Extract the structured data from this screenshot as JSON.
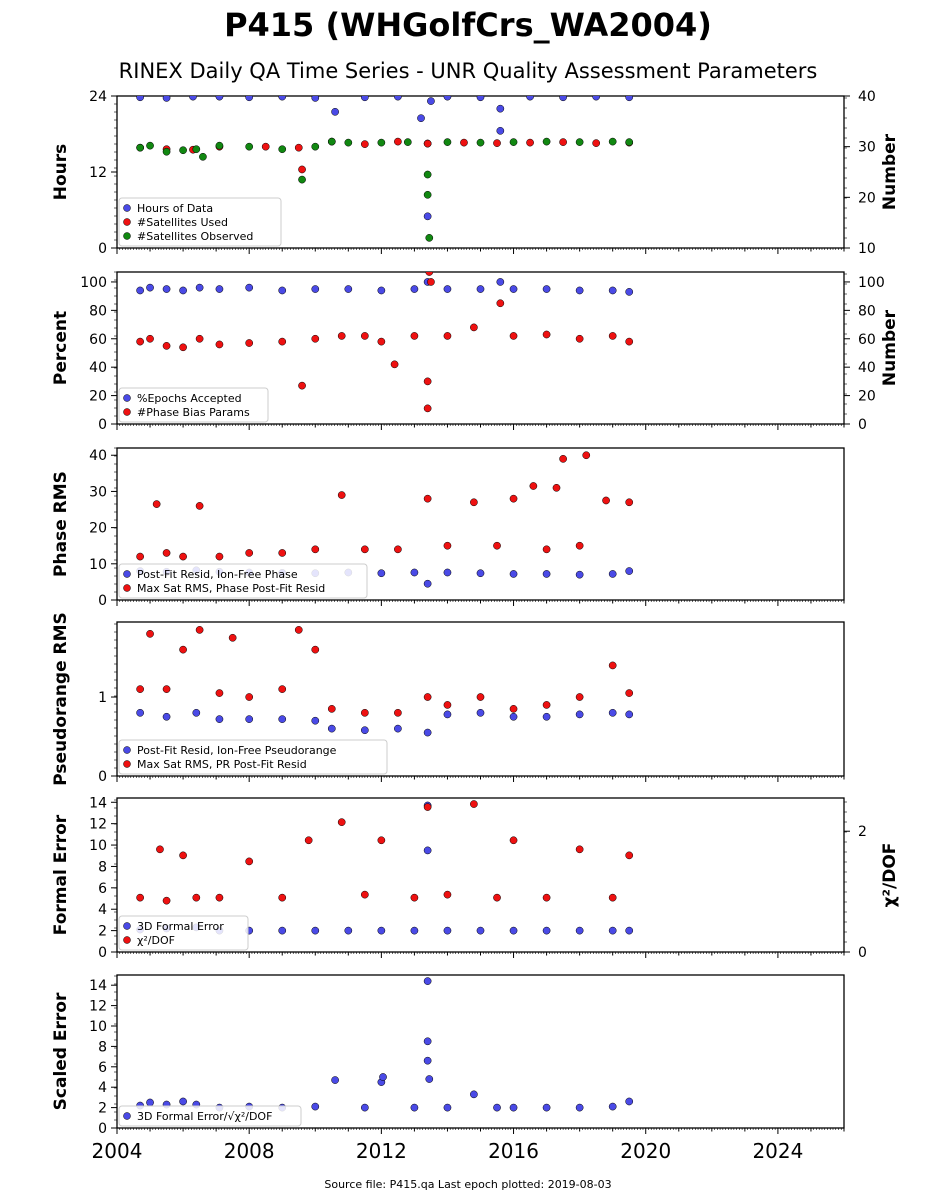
{
  "figure": {
    "title": "P415 (WHGolfCrs_WA2004)",
    "subtitle": "RINEX Daily QA Time Series - UNR Quality Assessment Parameters",
    "footer": "Source file: P415.qa Last epoch plotted: 2019-08-03",
    "x_ticks": [
      "2004",
      "2008",
      "2012",
      "2016",
      "2020",
      "2024"
    ],
    "colors": {
      "blue": "#4a4ae6",
      "red": "#ee1111",
      "green": "#118811",
      "edge": "#000000"
    }
  },
  "chart_data": [
    {
      "type": "scatter",
      "id": "hours",
      "xlim": [
        2004,
        2026
      ],
      "ylabel": "Hours",
      "ylim": [
        0,
        24
      ],
      "yticks": [
        "0",
        "12",
        "24"
      ],
      "right_ylabel": "Number",
      "right_ylim": [
        10,
        40
      ],
      "right_yticks": [
        "10",
        "20",
        "30",
        "40"
      ],
      "legend_position": "lower-left",
      "series": [
        {
          "name": "Hours of Data",
          "color": "blue",
          "axis": "left",
          "x": [
            2004.7,
            2005.5,
            2006.3,
            2007.1,
            2008.0,
            2009.0,
            2010.0,
            2010.6,
            2011.5,
            2012.5,
            2013.2,
            2013.4,
            2013.4,
            2013.5,
            2014.0,
            2015.0,
            2015.6,
            2015.6,
            2016.5,
            2017.5,
            2018.5,
            2019.5
          ],
          "y": [
            23.8,
            23.7,
            23.9,
            23.9,
            23.8,
            23.9,
            23.7,
            21.5,
            23.8,
            23.9,
            20.5,
            16.5,
            5,
            23.2,
            23.9,
            23.8,
            18.5,
            22.0,
            23.9,
            23.8,
            23.9,
            23.8
          ]
        },
        {
          "name": "#Satellites Used",
          "color": "red",
          "axis": "right",
          "x": [
            2004.7,
            2005.5,
            2006.3,
            2007.1,
            2008.5,
            2009.5,
            2009.6,
            2010.5,
            2011.5,
            2012.5,
            2013.4,
            2014.5,
            2015.5,
            2016.5,
            2017.5,
            2018.5,
            2019.5
          ],
          "y": [
            29.8,
            29.5,
            29.4,
            30.0,
            30.0,
            29.8,
            25.5,
            31.0,
            30.5,
            31.0,
            30.6,
            30.8,
            30.7,
            30.8,
            30.9,
            30.7,
            30.8
          ]
        },
        {
          "name": "#Satellites Observed",
          "color": "green",
          "axis": "right",
          "x": [
            2004.7,
            2005.0,
            2005.5,
            2006.0,
            2006.4,
            2006.6,
            2007.1,
            2008.0,
            2009.0,
            2009.6,
            2010.0,
            2010.5,
            2011.0,
            2012.0,
            2012.8,
            2013.4,
            2013.45,
            2013.4,
            2014.0,
            2015.0,
            2016.0,
            2017.0,
            2018.0,
            2019.0,
            2019.5
          ],
          "y": [
            29.8,
            30.2,
            29.0,
            29.3,
            29.5,
            28.0,
            30.2,
            30.0,
            29.5,
            23.5,
            30.0,
            31.0,
            30.8,
            30.8,
            30.9,
            20.5,
            12.0,
            24.5,
            30.9,
            30.8,
            30.9,
            31.0,
            30.9,
            31.0,
            30.9
          ]
        }
      ]
    },
    {
      "type": "scatter",
      "id": "percent",
      "xlim": [
        2004,
        2026
      ],
      "ylabel": "Percent",
      "ylim": [
        0,
        107
      ],
      "yticks": [
        "0",
        "20",
        "40",
        "60",
        "80",
        "100"
      ],
      "right_ylabel": "Number",
      "right_ylim": [
        0,
        107
      ],
      "right_yticks": [
        "0",
        "20",
        "40",
        "60",
        "80",
        "100"
      ],
      "legend_position": "lower-left",
      "series": [
        {
          "name": "%Epochs Accepted",
          "color": "blue",
          "axis": "left",
          "x": [
            2004.7,
            2005.0,
            2005.5,
            2006.0,
            2006.5,
            2007.1,
            2008.0,
            2009.0,
            2010.0,
            2011.0,
            2012.0,
            2013.0,
            2013.4,
            2014.0,
            2015.0,
            2015.6,
            2016.0,
            2017.0,
            2018.0,
            2019.0,
            2019.5
          ],
          "y": [
            94,
            96,
            95,
            94,
            96,
            95,
            96,
            94,
            95,
            95,
            94,
            95,
            100,
            95,
            95,
            100,
            95,
            95,
            94,
            94,
            93
          ]
        },
        {
          "name": "#Phase Bias Params",
          "color": "red",
          "axis": "left",
          "x": [
            2004.7,
            2005.0,
            2005.5,
            2006.0,
            2006.5,
            2007.1,
            2008.0,
            2009.0,
            2009.6,
            2010.0,
            2010.8,
            2011.5,
            2012.0,
            2012.4,
            2013.0,
            2013.4,
            2013.4,
            2013.45,
            2013.5,
            2014.0,
            2014.8,
            2015.6,
            2016.0,
            2017.0,
            2018.0,
            2019.0,
            2019.5
          ],
          "y": [
            58,
            60,
            55,
            54,
            60,
            56,
            57,
            58,
            27,
            60,
            62,
            62,
            58,
            42,
            62,
            11,
            30,
            107,
            100,
            62,
            68,
            85,
            62,
            63,
            60,
            62,
            58
          ]
        }
      ]
    },
    {
      "type": "scatter",
      "id": "phase_rms",
      "xlim": [
        2004,
        2026
      ],
      "ylabel": "Phase RMS",
      "ylim": [
        0,
        42
      ],
      "yticks": [
        "0",
        "10",
        "20",
        "30",
        "40"
      ],
      "legend_position": "lower-left",
      "series": [
        {
          "name": "Post-Fit Resid, Ion-Free Phase",
          "color": "blue",
          "axis": "left",
          "x": [
            2004.7,
            2005.5,
            2006.4,
            2007.1,
            2008.0,
            2009.0,
            2010.0,
            2011.0,
            2012.0,
            2013.0,
            2013.4,
            2014.0,
            2015.0,
            2016.0,
            2017.0,
            2018.0,
            2019.0,
            2019.5
          ],
          "y": [
            8.0,
            7.8,
            8.2,
            7.8,
            7.6,
            7.5,
            7.4,
            7.6,
            7.4,
            7.6,
            4.5,
            7.6,
            7.4,
            7.2,
            7.2,
            7.0,
            7.2,
            8.0
          ]
        },
        {
          "name": "Max Sat RMS, Phase Post-Fit Resid",
          "color": "red",
          "axis": "left",
          "x": [
            2004.7,
            2005.2,
            2005.5,
            2006.0,
            2006.5,
            2007.1,
            2008.0,
            2009.0,
            2010.0,
            2010.8,
            2011.5,
            2012.5,
            2013.4,
            2014.0,
            2014.8,
            2015.5,
            2016.0,
            2016.6,
            2017.0,
            2017.3,
            2017.5,
            2018.0,
            2018.2,
            2018.8,
            2019.5
          ],
          "y": [
            12,
            26.5,
            13,
            12,
            26,
            12,
            13,
            13,
            14,
            29,
            14,
            14,
            28,
            15,
            27,
            15,
            28,
            31.5,
            14,
            31,
            39,
            15,
            40,
            27.5,
            27
          ]
        }
      ]
    },
    {
      "type": "scatter",
      "id": "pseudorange_rms",
      "xlim": [
        2004,
        2026
      ],
      "ylabel": "Pseudorange RMS",
      "ylim": [
        0,
        1.95
      ],
      "yticks": [
        "0",
        "1"
      ],
      "legend_position": "lower-left",
      "series": [
        {
          "name": "Post-Fit Resid, Ion-Free Pseudorange",
          "color": "blue",
          "axis": "left",
          "x": [
            2004.7,
            2005.5,
            2006.4,
            2007.1,
            2008.0,
            2009.0,
            2010.0,
            2010.5,
            2011.5,
            2012.5,
            2013.4,
            2014.0,
            2015.0,
            2016.0,
            2017.0,
            2018.0,
            2019.0,
            2019.5
          ],
          "y": [
            0.8,
            0.75,
            0.8,
            0.72,
            0.72,
            0.72,
            0.7,
            0.6,
            0.58,
            0.6,
            0.55,
            0.78,
            0.8,
            0.75,
            0.75,
            0.78,
            0.8,
            0.78
          ]
        },
        {
          "name": "Max Sat RMS, PR Post-Fit Resid",
          "color": "red",
          "axis": "left",
          "x": [
            2004.7,
            2005.0,
            2005.5,
            2006.0,
            2006.5,
            2007.1,
            2007.5,
            2008.0,
            2009.0,
            2009.5,
            2010.0,
            2010.5,
            2011.5,
            2012.5,
            2013.4,
            2014.0,
            2015.0,
            2016.0,
            2017.0,
            2018.0,
            2019.0,
            2019.5
          ],
          "y": [
            1.1,
            1.8,
            1.1,
            1.6,
            1.85,
            1.05,
            1.75,
            1.0,
            1.1,
            1.85,
            1.6,
            0.85,
            0.8,
            0.8,
            1.0,
            0.9,
            1.0,
            0.85,
            0.9,
            1.0,
            1.4,
            1.05
          ]
        }
      ]
    },
    {
      "type": "scatter",
      "id": "formal_error",
      "xlim": [
        2004,
        2026
      ],
      "ylabel": "Formal Error",
      "ylim": [
        0,
        14.4
      ],
      "yticks": [
        "0",
        "2",
        "4",
        "6",
        "8",
        "10",
        "12",
        "14"
      ],
      "right_ylabel": "χ²/DOF",
      "right_ylim": [
        0,
        2.55
      ],
      "right_yticks": [
        "0",
        "2"
      ],
      "legend_position": "lower-left",
      "series": [
        {
          "name": "3D Formal Error",
          "color": "blue",
          "axis": "left",
          "x": [
            2004.7,
            2005.5,
            2006.4,
            2007.1,
            2008.0,
            2009.0,
            2010.0,
            2011.0,
            2012.0,
            2013.0,
            2013.4,
            2013.4,
            2014.0,
            2015.0,
            2016.0,
            2017.0,
            2018.0,
            2019.0,
            2019.5
          ],
          "y": [
            2.1,
            2.2,
            2.3,
            2.0,
            2.0,
            2.0,
            2.0,
            2.0,
            2.0,
            2.0,
            13.7,
            9.5,
            2.0,
            2.0,
            2.0,
            2.0,
            2.0,
            2.0,
            2.0
          ]
        },
        {
          "name": "χ²/DOF",
          "color": "red",
          "axis": "right",
          "x": [
            2004.7,
            2005.3,
            2005.5,
            2006.0,
            2006.4,
            2007.1,
            2008.0,
            2009.0,
            2009.8,
            2010.8,
            2011.5,
            2012.0,
            2013.0,
            2013.4,
            2014.0,
            2014.8,
            2015.5,
            2016.0,
            2017.0,
            2018.0,
            2019.0,
            2019.5
          ],
          "y": [
            0.9,
            1.7,
            0.85,
            1.6,
            0.9,
            0.9,
            1.5,
            0.9,
            1.85,
            2.15,
            0.95,
            1.85,
            0.9,
            2.4,
            0.95,
            2.45,
            0.9,
            1.85,
            0.9,
            1.7,
            0.9,
            1.6
          ]
        }
      ]
    },
    {
      "type": "scatter",
      "id": "scaled_error",
      "xlim": [
        2004,
        2026
      ],
      "ylabel": "Scaled Error",
      "ylim": [
        0,
        15
      ],
      "yticks": [
        "0",
        "2",
        "4",
        "6",
        "8",
        "10",
        "12",
        "14"
      ],
      "legend_position": "lower-left",
      "series": [
        {
          "name": "3D Formal Error/√χ²/DOF",
          "color": "blue",
          "axis": "left",
          "x": [
            2004.7,
            2005.0,
            2005.5,
            2006.0,
            2006.4,
            2007.1,
            2008.0,
            2009.0,
            2010.0,
            2010.6,
            2011.5,
            2012.0,
            2012.05,
            2013.0,
            2013.4,
            2013.4,
            2013.4,
            2013.45,
            2014.0,
            2014.8,
            2015.5,
            2016.0,
            2017.0,
            2018.0,
            2019.0,
            2019.5
          ],
          "y": [
            2.2,
            2.5,
            2.3,
            2.6,
            2.3,
            2.0,
            2.1,
            2.0,
            2.1,
            4.7,
            2.0,
            4.5,
            5.0,
            2.0,
            14.4,
            8.5,
            6.6,
            4.8,
            2.0,
            3.3,
            2.0,
            2.0,
            2.0,
            2.0,
            2.1,
            2.6
          ]
        }
      ]
    }
  ]
}
